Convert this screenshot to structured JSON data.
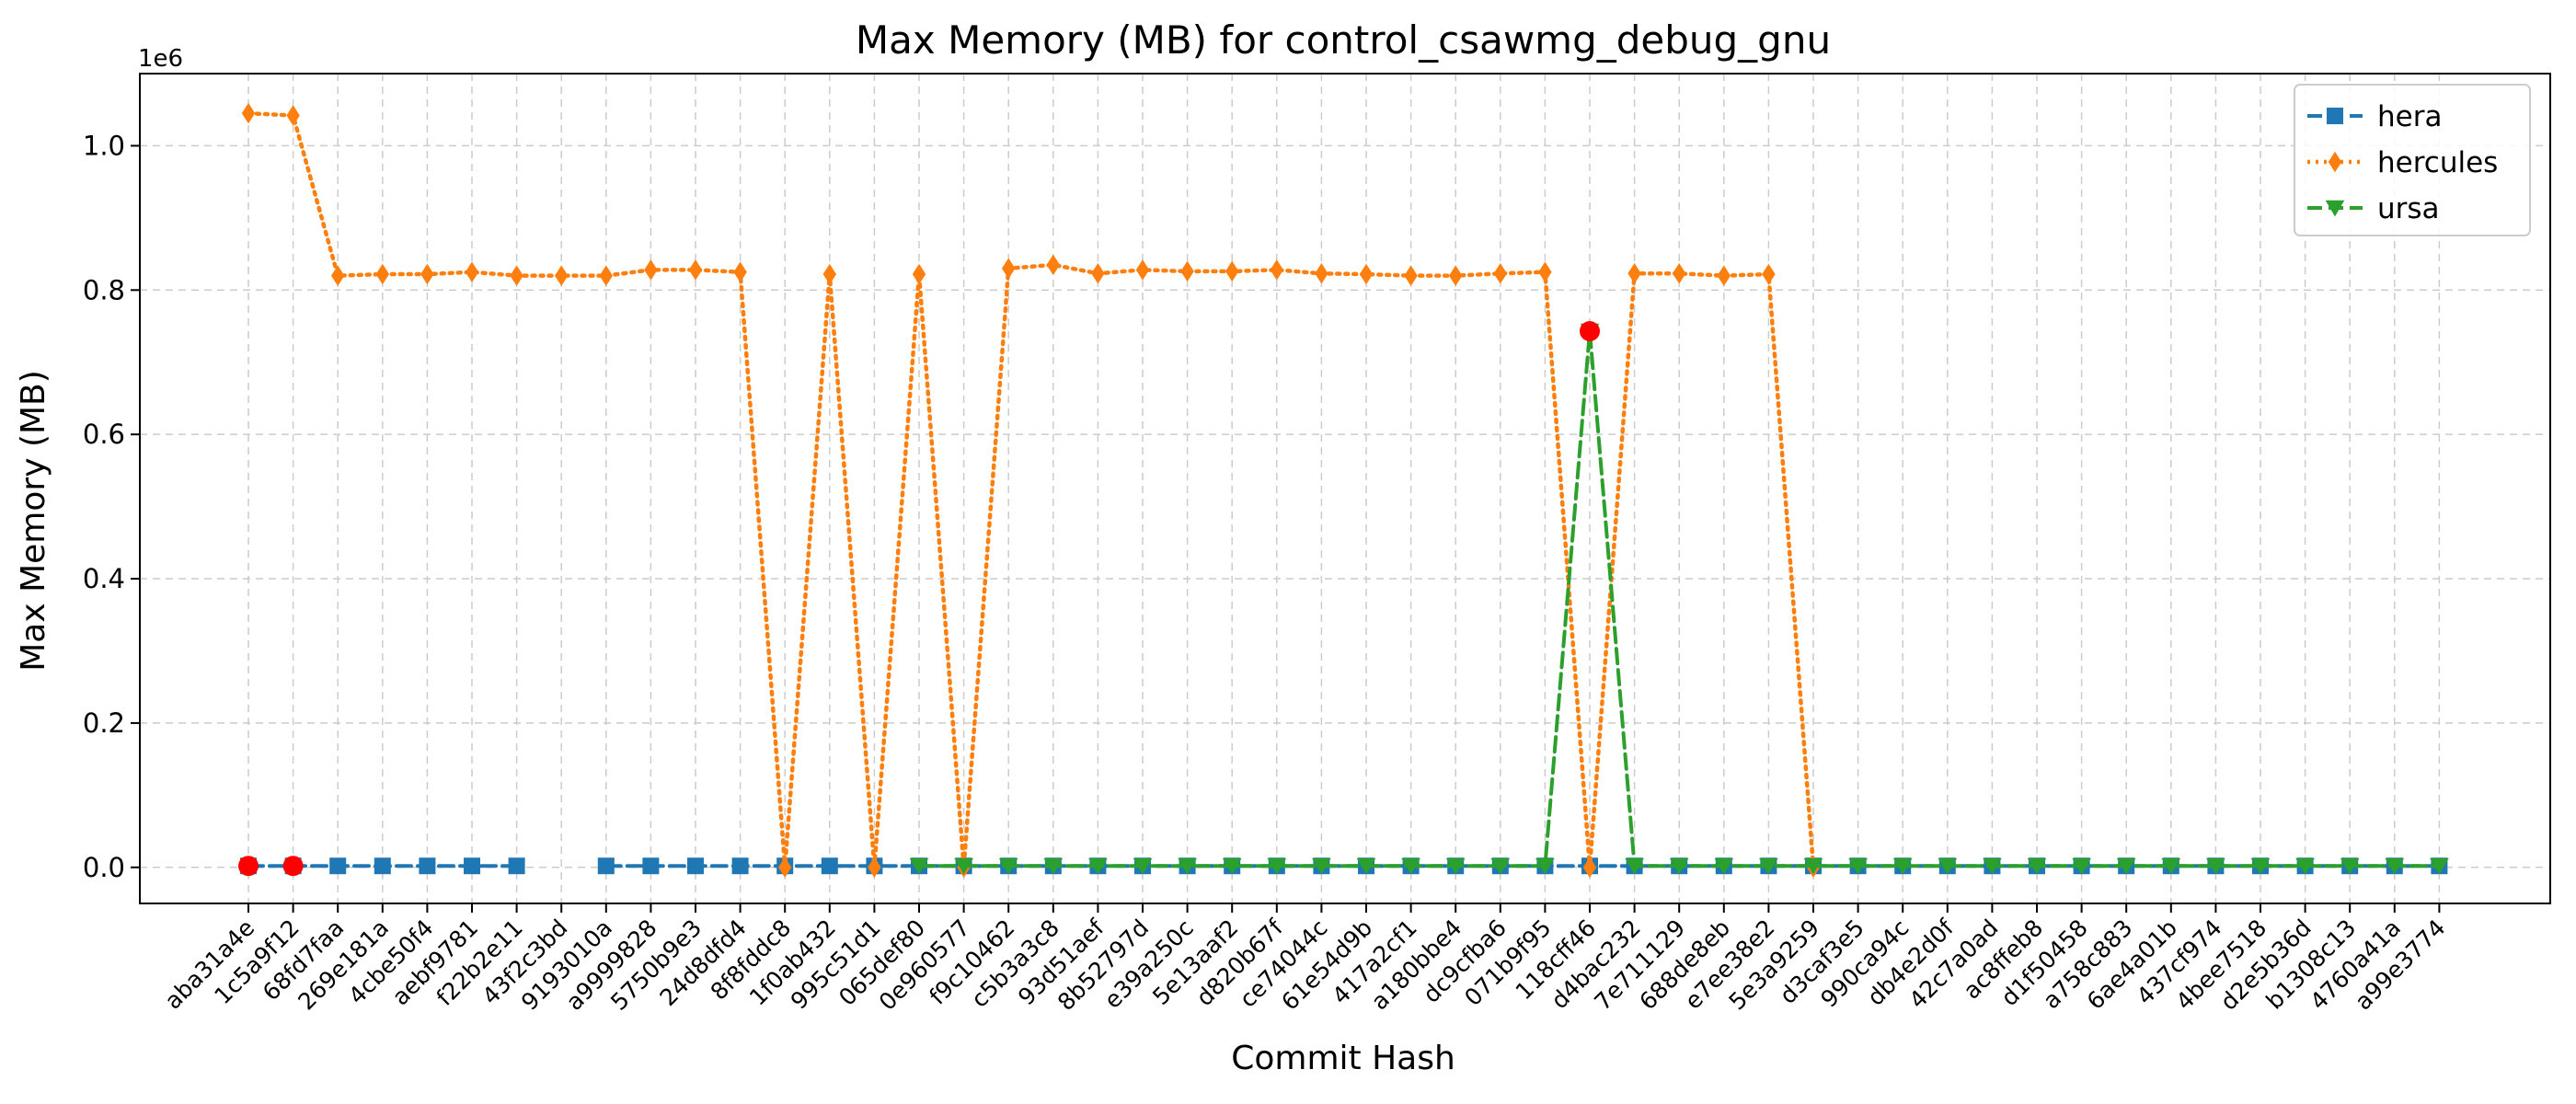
{
  "chart_data": {
    "type": "line",
    "title": "Max Memory (MB) for control_csawmg_debug_gnu",
    "xlabel": "Commit Hash",
    "ylabel": "Max Memory (MB)",
    "y_scale_label": "1e6",
    "ylim": [
      -50000,
      1100000
    ],
    "yticks": [
      0,
      200000,
      400000,
      600000,
      800000,
      1000000
    ],
    "ytick_labels": [
      "0.0",
      "0.2",
      "0.4",
      "0.6",
      "0.8",
      "1.0"
    ],
    "grid": true,
    "legend_position": "top-right",
    "categories": [
      "aba31a4e",
      "1c5a9f12",
      "68fd7faa",
      "269e181a",
      "4cbe50f4",
      "aebf9781",
      "f22b2e11",
      "43f2c3bd",
      "9193010a",
      "a9999828",
      "5750b9e3",
      "24d8dfd4",
      "8f8fddc8",
      "1f0ab432",
      "995c51d1",
      "065def80",
      "0e960577",
      "f9c10462",
      "c5b3a3c8",
      "93d51aef",
      "8b52797d",
      "e39a250c",
      "5e13aaf2",
      "d820b67f",
      "ce74044c",
      "61e54d9b",
      "417a2cf1",
      "a180bbe4",
      "dc9cfba6",
      "071b9f95",
      "118cff46",
      "d4bac232",
      "7e711129",
      "688de8eb",
      "e7ee38e2",
      "5e3a9259",
      "d3caf3e5",
      "990ca94c",
      "db4e2d0f",
      "42c7a0ad",
      "ac8ffeb8",
      "d1f50458",
      "a758c883",
      "6ae4a01b",
      "437cf974",
      "4bee7518",
      "d2e5b36d",
      "b1308c13",
      "4760a41a",
      "a99e3774"
    ],
    "series": [
      {
        "name": "hera",
        "color": "#1f77b4",
        "marker": "square",
        "dash": "dashed",
        "values": [
          2000,
          2000,
          2000,
          2000,
          2000,
          2000,
          2000,
          null,
          2000,
          2000,
          2000,
          2000,
          2000,
          2000,
          2000,
          2000,
          2000,
          2000,
          2000,
          2000,
          2000,
          2000,
          2000,
          2000,
          2000,
          2000,
          2000,
          2000,
          2000,
          2000,
          2000,
          2000,
          2000,
          2000,
          2000,
          2000,
          2000,
          2000,
          2000,
          2000,
          2000,
          2000,
          2000,
          2000,
          2000,
          2000,
          2000,
          2000,
          2000,
          2000
        ]
      },
      {
        "name": "hercules",
        "color": "#ff7f0e",
        "marker": "diamond",
        "dash": "dotted",
        "values": [
          1045000,
          1042000,
          820000,
          822000,
          822000,
          825000,
          820000,
          820000,
          820000,
          828000,
          828000,
          825000,
          0,
          822000,
          0,
          822000,
          0,
          830000,
          835000,
          823000,
          828000,
          826000,
          826000,
          828000,
          823000,
          822000,
          820000,
          820000,
          823000,
          825000,
          0,
          823000,
          823000,
          820000,
          822000,
          0,
          null,
          null,
          null,
          null,
          null,
          null,
          null,
          null,
          null,
          null,
          null,
          null,
          null,
          null
        ]
      },
      {
        "name": "ursa",
        "color": "#2ca02c",
        "marker": "triangle-down",
        "dash": "dashed",
        "values": [
          null,
          null,
          null,
          null,
          null,
          null,
          null,
          null,
          null,
          null,
          null,
          null,
          null,
          null,
          null,
          2000,
          2000,
          2000,
          2000,
          2000,
          2000,
          2000,
          2000,
          2000,
          2000,
          2000,
          2000,
          2000,
          2000,
          2000,
          743000,
          2000,
          2000,
          2000,
          2000,
          2000,
          2000,
          2000,
          2000,
          2000,
          2000,
          2000,
          2000,
          2000,
          2000,
          2000,
          2000,
          2000,
          2000,
          2000
        ]
      }
    ],
    "highlighted_points": [
      {
        "category": "aba31a4e",
        "value": 2000,
        "color": "#ff0000"
      },
      {
        "category": "1c5a9f12",
        "value": 2000,
        "color": "#ff0000"
      },
      {
        "category": "118cff46",
        "value": 743000,
        "color": "#ff0000"
      }
    ]
  }
}
